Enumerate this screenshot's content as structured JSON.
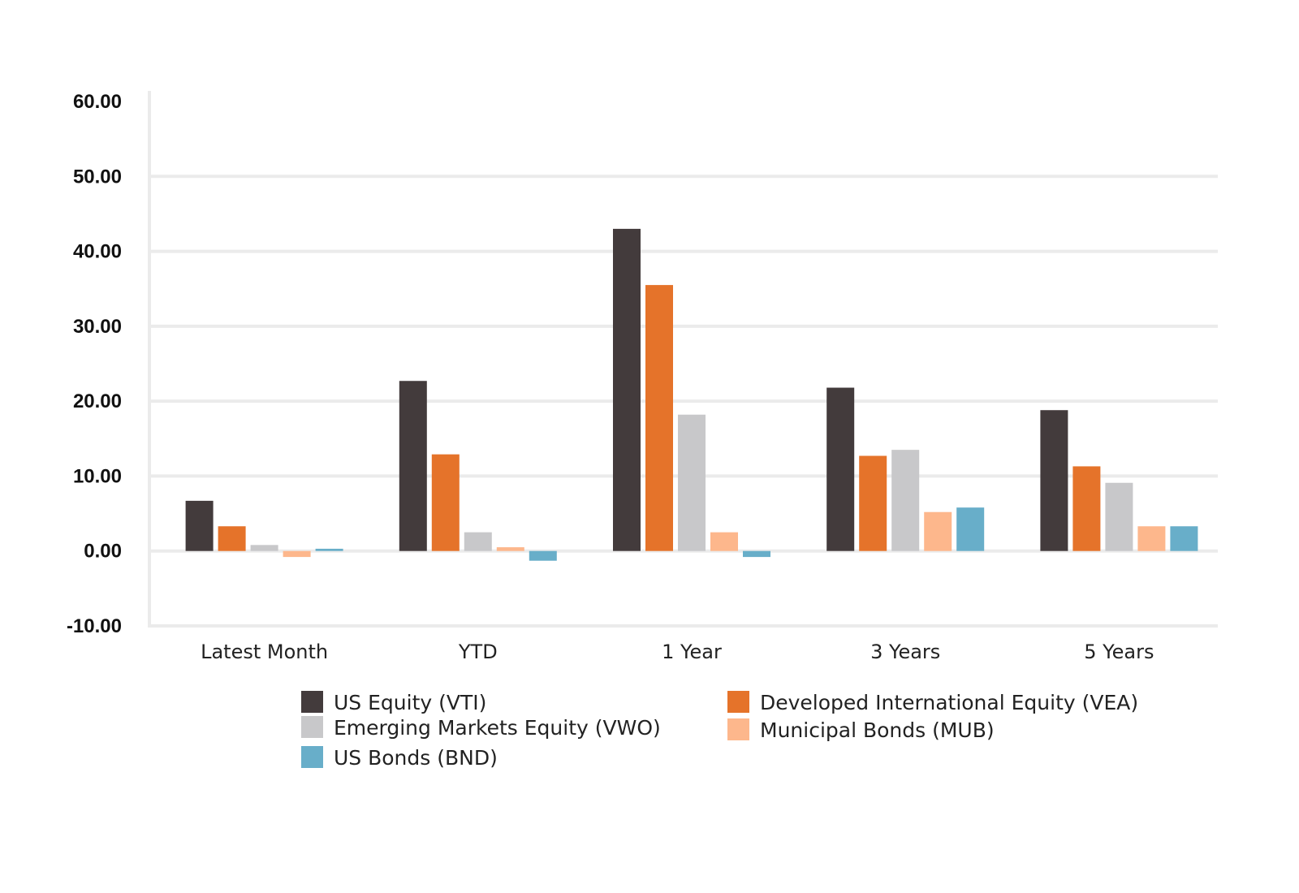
{
  "chart_data": {
    "type": "bar",
    "title": "",
    "xlabel": "",
    "ylabel": "",
    "ylim": [
      -10,
      60
    ],
    "yticks": [
      -10,
      0,
      10,
      20,
      30,
      40,
      50,
      60
    ],
    "ytick_labels": [
      "-10.00",
      "0.00",
      "10.00",
      "20.00",
      "30.00",
      "40.00",
      "50.00",
      "60.00"
    ],
    "grid": true,
    "legend_position": "bottom",
    "categories": [
      "Latest Month",
      "YTD",
      "1 Year",
      "3 Years",
      "5 Years"
    ],
    "series": [
      {
        "name": "US Equity (VTI)",
        "color": "#433B3C",
        "values": [
          6.7,
          22.7,
          43.0,
          21.8,
          18.8
        ]
      },
      {
        "name": "Developed International Equity (VEA)",
        "color": "#E5732A",
        "values": [
          3.3,
          12.9,
          35.5,
          12.7,
          11.3
        ]
      },
      {
        "name": "Emerging Markets Equity (VWO)",
        "color": "#C8C8CA",
        "values": [
          0.8,
          2.5,
          18.2,
          13.5,
          9.1
        ]
      },
      {
        "name": "Municipal Bonds (MUB)",
        "color": "#FDB78C",
        "values": [
          -0.8,
          0.5,
          2.5,
          5.2,
          3.3
        ]
      },
      {
        "name": "US Bonds (BND)",
        "color": "#68AEC9",
        "values": [
          0.3,
          -1.3,
          -0.8,
          5.8,
          3.3
        ]
      }
    ]
  }
}
